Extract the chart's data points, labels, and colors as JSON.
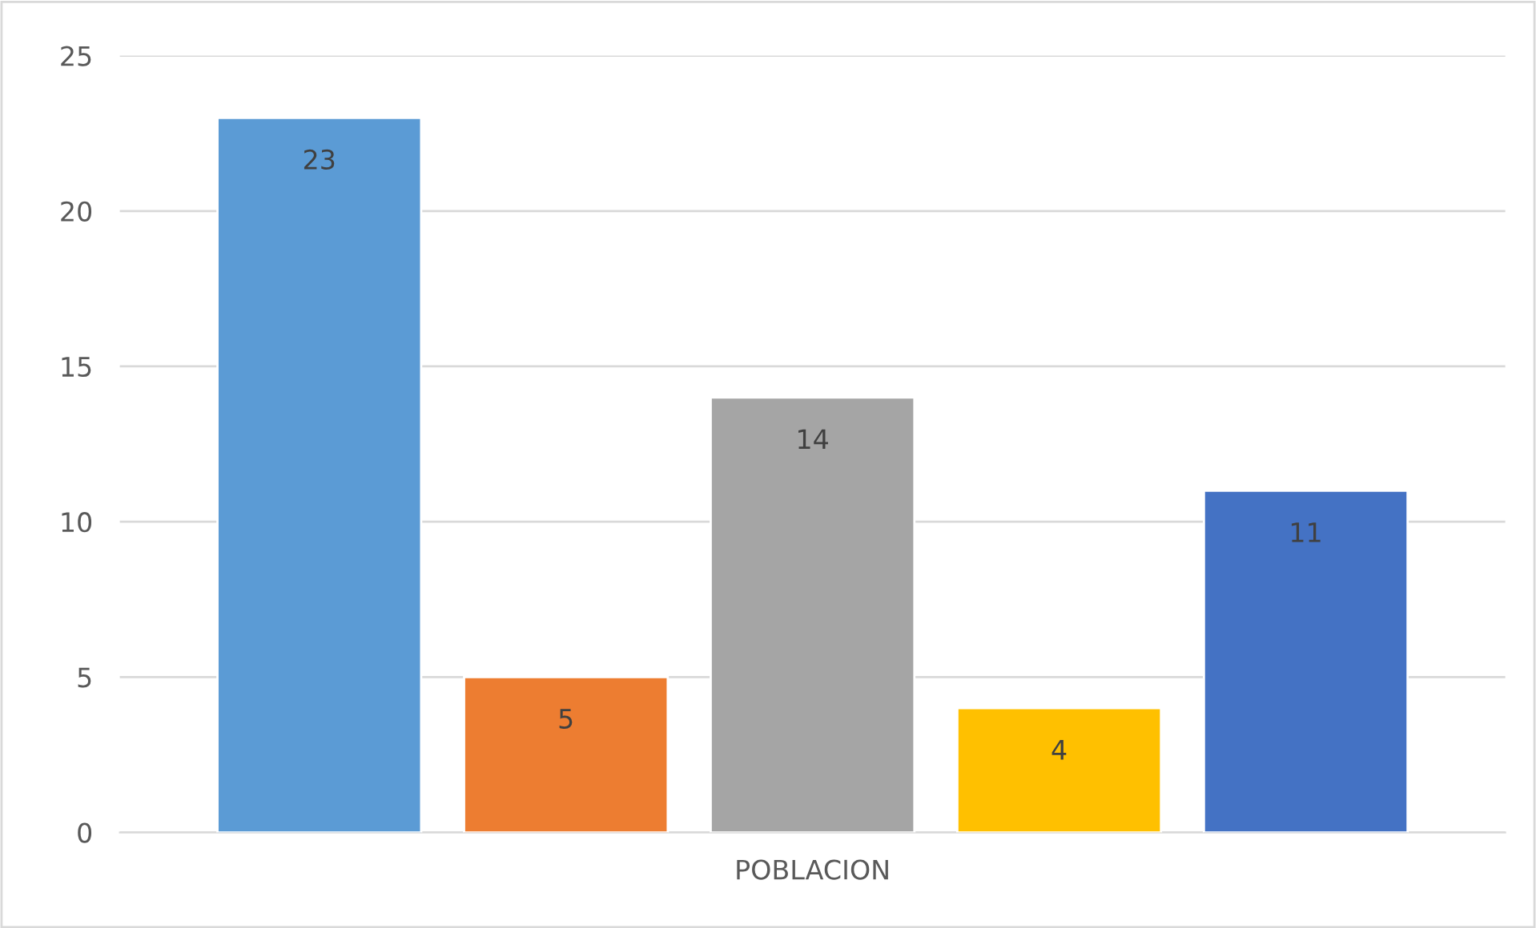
{
  "chart_data": {
    "type": "bar",
    "categories": [
      "POBLACION"
    ],
    "series": [
      {
        "color": "#5b9bd5",
        "values": [
          23
        ]
      },
      {
        "color": "#ed7d31",
        "values": [
          5
        ]
      },
      {
        "color": "#a5a5a5",
        "values": [
          14
        ]
      },
      {
        "color": "#ffc000",
        "values": [
          4
        ]
      },
      {
        "color": "#4472c4",
        "values": [
          11
        ]
      }
    ],
    "ylim": [
      0,
      25
    ],
    "yticks": [
      0,
      5,
      10,
      15,
      20,
      25
    ],
    "grid": "y",
    "data_labels": true
  }
}
